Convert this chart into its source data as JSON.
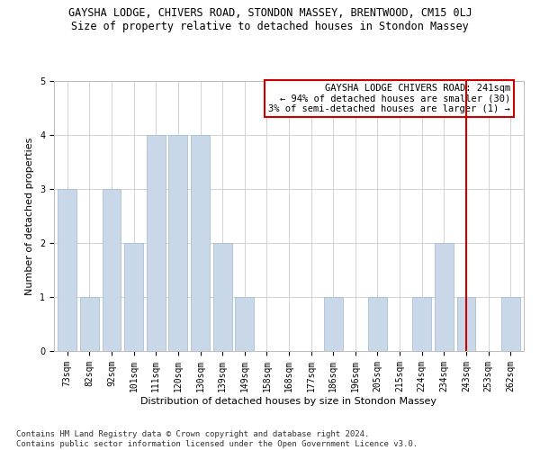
{
  "title": "GAYSHA LODGE, CHIVERS ROAD, STONDON MASSEY, BRENTWOOD, CM15 0LJ",
  "subtitle": "Size of property relative to detached houses in Stondon Massey",
  "xlabel": "Distribution of detached houses by size in Stondon Massey",
  "ylabel": "Number of detached properties",
  "categories": [
    "73sqm",
    "82sqm",
    "92sqm",
    "101sqm",
    "111sqm",
    "120sqm",
    "130sqm",
    "139sqm",
    "149sqm",
    "158sqm",
    "168sqm",
    "177sqm",
    "186sqm",
    "196sqm",
    "205sqm",
    "215sqm",
    "224sqm",
    "234sqm",
    "243sqm",
    "253sqm",
    "262sqm"
  ],
  "values": [
    3,
    1,
    3,
    2,
    4,
    4,
    4,
    2,
    1,
    0,
    0,
    0,
    1,
    0,
    1,
    0,
    1,
    2,
    1,
    0,
    1
  ],
  "bar_color": "#c8d8e8",
  "bar_edge_color": "#a0b8cc",
  "vline_x_index": 18,
  "vline_color": "#cc0000",
  "annotation_text": "GAYSHA LODGE CHIVERS ROAD: 241sqm\n← 94% of detached houses are smaller (30)\n3% of semi-detached houses are larger (1) →",
  "annotation_box_color": "#ffffff",
  "annotation_box_edge_color": "#cc0000",
  "ylim": [
    0,
    5
  ],
  "yticks": [
    0,
    1,
    2,
    3,
    4,
    5
  ],
  "footer": "Contains HM Land Registry data © Crown copyright and database right 2024.\nContains public sector information licensed under the Open Government Licence v3.0.",
  "title_fontsize": 8.5,
  "subtitle_fontsize": 8.5,
  "xlabel_fontsize": 8,
  "ylabel_fontsize": 8,
  "tick_fontsize": 7,
  "annotation_fontsize": 7.5,
  "footer_fontsize": 6.5
}
